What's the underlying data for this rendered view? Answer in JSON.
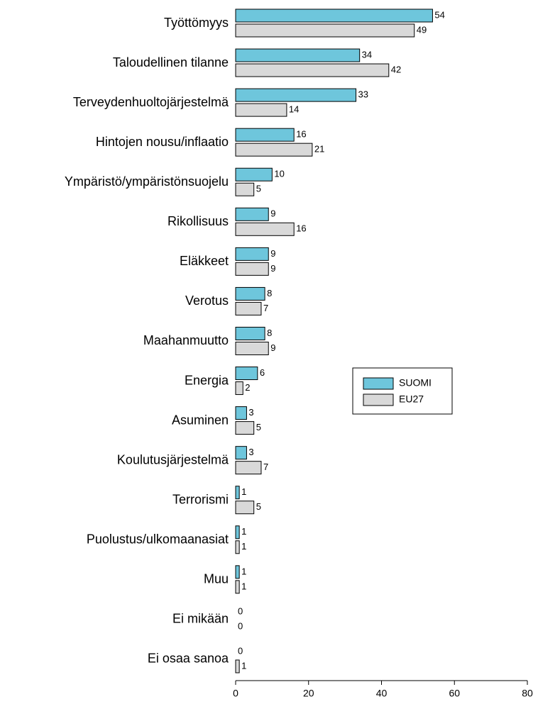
{
  "chart_data": {
    "type": "barh",
    "categories": [
      "Työttömyys",
      "Taloudellinen tilanne",
      "Terveydenhuoltojärjestelmä",
      "Hintojen nousu/inflaatio",
      "Ympäristö/ympäristönsuojelu",
      "Rikollisuus",
      "Eläkkeet",
      "Verotus",
      "Maahanmuutto",
      "Energia",
      "Asuminen",
      "Koulutusjärjestelmä",
      "Terrorismi",
      "Puolustus/ulkomaanasiat",
      "Muu",
      "Ei mikään",
      "Ei osaa sanoa"
    ],
    "series": [
      {
        "name": "SUOMI",
        "color": "#6ec6dc",
        "values": [
          54,
          34,
          33,
          16,
          10,
          9,
          9,
          8,
          8,
          6,
          3,
          3,
          1,
          1,
          1,
          0,
          0
        ]
      },
      {
        "name": "EU27",
        "color": "#d9d9d9",
        "values": [
          49,
          42,
          14,
          21,
          5,
          16,
          9,
          7,
          9,
          2,
          5,
          7,
          5,
          1,
          1,
          0,
          1
        ]
      }
    ],
    "xlim": [
      0,
      80
    ],
    "xticks": [
      0,
      20,
      40,
      60,
      80
    ],
    "grid": false,
    "legend": "center right"
  }
}
